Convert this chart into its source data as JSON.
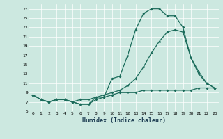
{
  "xlabel": "Humidex (Indice chaleur)",
  "bg_color": "#cce8e0",
  "line_color": "#1a6b5a",
  "xlim": [
    -0.5,
    23.5
  ],
  "ylim": [
    5,
    28
  ],
  "yticks": [
    5,
    7,
    9,
    11,
    13,
    15,
    17,
    19,
    21,
    23,
    25,
    27
  ],
  "xticks": [
    0,
    1,
    2,
    3,
    4,
    5,
    6,
    7,
    8,
    9,
    10,
    11,
    12,
    13,
    14,
    15,
    16,
    17,
    18,
    19,
    20,
    21,
    22,
    23
  ],
  "line1_x": [
    0,
    1,
    2,
    3,
    4,
    5,
    6,
    7,
    8,
    9,
    10,
    11,
    12,
    13,
    14,
    15,
    16,
    17,
    18,
    19,
    20,
    21,
    22,
    23
  ],
  "line1_y": [
    8.5,
    7.5,
    7.0,
    7.5,
    7.5,
    7.0,
    6.5,
    6.5,
    8.0,
    8.0,
    12.0,
    12.5,
    17.0,
    22.5,
    26.0,
    27.0,
    27.0,
    25.5,
    25.5,
    23.0,
    16.5,
    13.5,
    11.0,
    10.0
  ],
  "line2_x": [
    0,
    1,
    2,
    3,
    4,
    5,
    6,
    7,
    8,
    9,
    10,
    11,
    12,
    13,
    14,
    15,
    16,
    17,
    18,
    19,
    20,
    21,
    22,
    23
  ],
  "line2_y": [
    8.5,
    7.5,
    7.0,
    7.5,
    7.5,
    7.0,
    7.5,
    7.5,
    8.0,
    8.5,
    9.0,
    9.5,
    10.5,
    12.0,
    14.5,
    17.5,
    20.0,
    22.0,
    22.5,
    22.0,
    16.5,
    13.0,
    11.0,
    10.0
  ],
  "line3_x": [
    0,
    1,
    2,
    3,
    4,
    5,
    6,
    7,
    8,
    9,
    10,
    11,
    12,
    13,
    14,
    15,
    16,
    17,
    18,
    19,
    20,
    21,
    22,
    23
  ],
  "line3_y": [
    8.5,
    7.5,
    7.0,
    7.5,
    7.5,
    7.0,
    6.5,
    6.5,
    7.5,
    8.0,
    8.5,
    9.0,
    9.0,
    9.0,
    9.5,
    9.5,
    9.5,
    9.5,
    9.5,
    9.5,
    9.5,
    10.0,
    10.0,
    10.0
  ]
}
